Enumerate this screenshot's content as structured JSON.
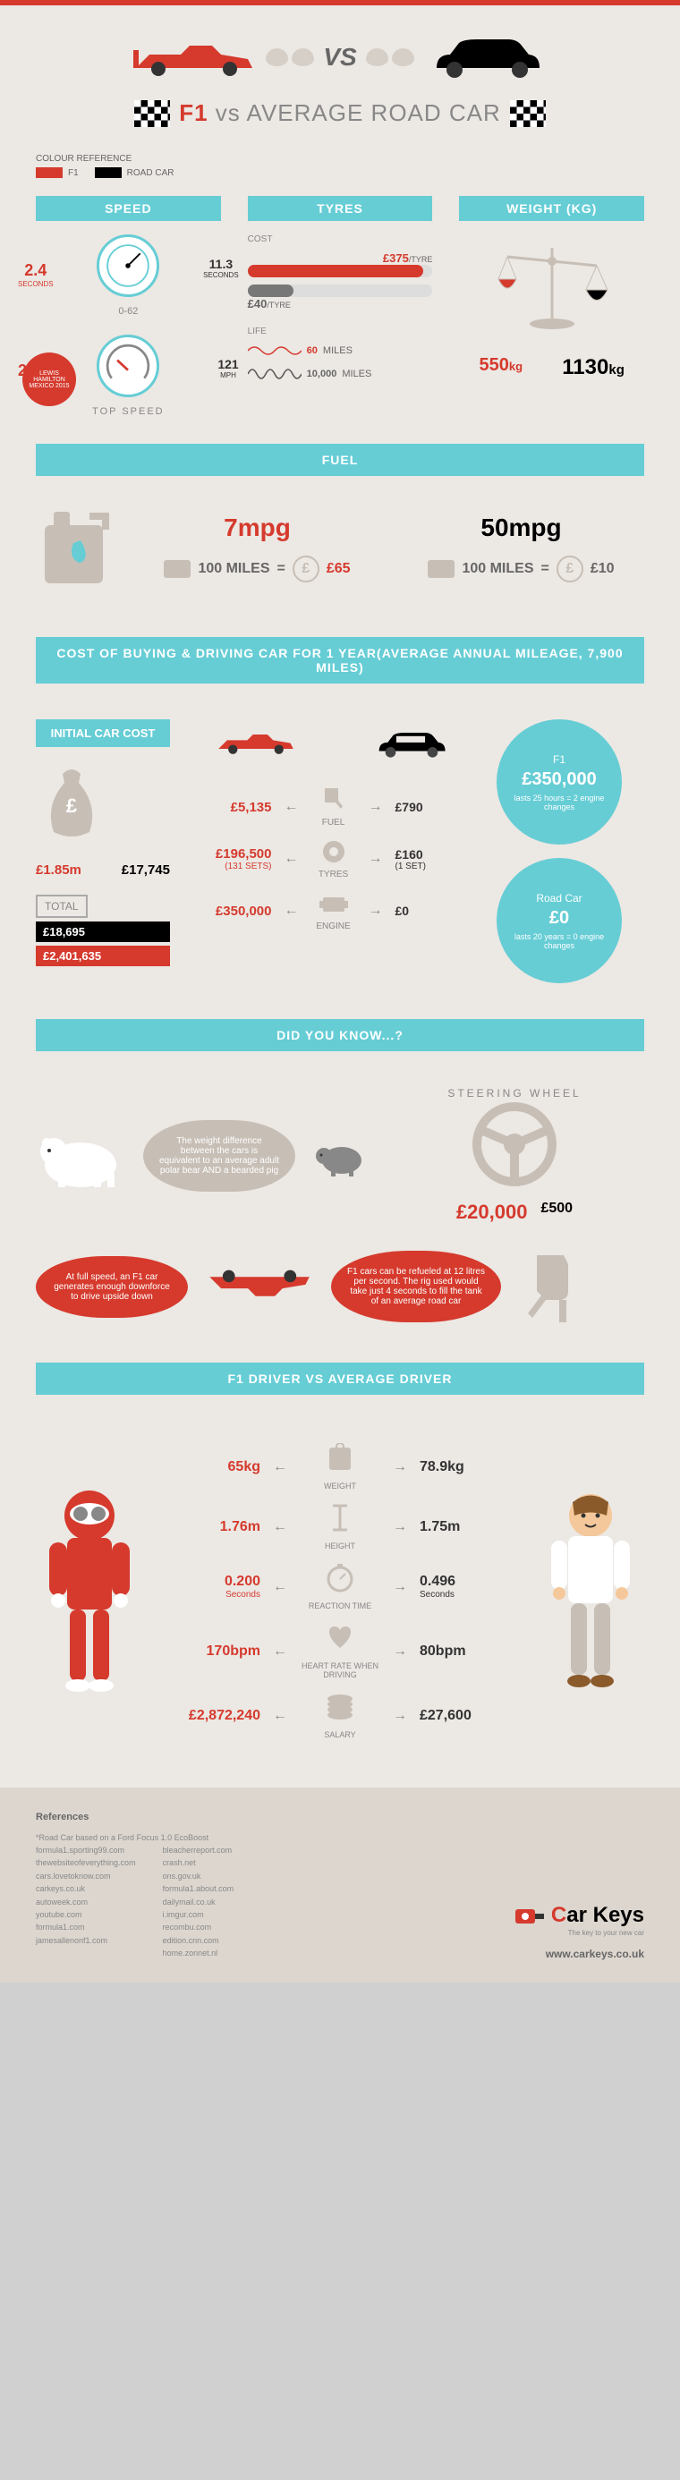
{
  "colors": {
    "f1": "#d53a2d",
    "road": "#000000",
    "teal": "#66cdd5",
    "bg": "#ece8e4",
    "beige": "#c7bfb6"
  },
  "title": {
    "f1": "F1",
    "vs": " vs ",
    "road": "AVERAGE ROAD CAR",
    "vs_badge": "VS"
  },
  "legend": {
    "header": "COLOUR REFERENCE",
    "f1": "F1",
    "road": "ROAD CAR"
  },
  "speed": {
    "header": "SPEED",
    "accel_f1": "2.4",
    "accel_f1_unit": "SECONDS",
    "accel_road": "11.3",
    "accel_road_unit": "SECONDS",
    "range": "0-62",
    "top_f1": "223",
    "top_f1_unit": "MPH",
    "top_road": "121",
    "top_road_unit": "MPH",
    "top_label": "TOP SPEED",
    "hamilton": "LEWIS HAMILTON MEXICO 2015"
  },
  "tyres": {
    "header": "TYRES",
    "cost_label": "COST",
    "cost_f1": "£375",
    "cost_f1_unit": "/TYRE",
    "cost_road": "£40",
    "cost_road_unit": "/TYRE",
    "life_label": "LIFE",
    "life_f1": "60",
    "life_f1_unit": "MILES",
    "life_road": "10,000",
    "life_road_unit": "MILES",
    "bar_f1_pct": 95,
    "bar_road_pct": 25
  },
  "weight": {
    "header": "WEIGHT (KG)",
    "f1": "550",
    "f1_unit": "kg",
    "road": "1130",
    "road_unit": "kg"
  },
  "fuel": {
    "header": "FUEL",
    "mpg_f1": "7mpg",
    "mpg_road": "50mpg",
    "dist": "100 MILES",
    "eq": "=",
    "cost_f1": "£65",
    "cost_road": "£10"
  },
  "annual": {
    "header": "COST OF BUYING & DRIVING CAR FOR 1 YEAR",
    "sub": "(AVERAGE ANNUAL MILEAGE, 7,900 MILES)",
    "initial_header": "INITIAL CAR COST",
    "initial_f1": "£1.85m",
    "initial_road": "£17,745",
    "total_label": "TOTAL",
    "total_road": "£18,695",
    "total_f1": "£2,401,635",
    "rows": [
      {
        "f1": "£5,135",
        "road": "£790",
        "label": "FUEL"
      },
      {
        "f1": "£196,500",
        "f1_sub": "(131 SETS)",
        "road": "£160",
        "road_sub": "(1 SET)",
        "label": "TYRES"
      },
      {
        "f1": "£350,000",
        "road": "£0",
        "label": "ENGINE"
      }
    ],
    "bubble_f1": {
      "title": "F1",
      "val": "£350,000",
      "sub": "lasts 25 hours = 2 engine changes"
    },
    "bubble_road": {
      "title": "Road Car",
      "val": "£0",
      "sub": "lasts 20 years = 0 engine changes"
    }
  },
  "dyk": {
    "header": "DID YOU KNOW...?",
    "weight_fact": "The weight difference between the cars is equivalent to an average adult polar bear AND a bearded pig",
    "steering_label": "STEERING WHEEL",
    "steering_f1": "£20,000",
    "steering_road": "£500",
    "downforce": "At full speed, an F1 car generates enough downforce to drive upside down",
    "refuel": "F1 cars can be refueled at 12 litres per second. The rig used would take just 4 seconds to fill the tank of an average road car"
  },
  "driver": {
    "header": "F1 DRIVER VS AVERAGE DRIVER",
    "rows": [
      {
        "f1": "65kg",
        "road": "78.9kg",
        "label": "WEIGHT"
      },
      {
        "f1": "1.76m",
        "road": "1.75m",
        "label": "HEIGHT"
      },
      {
        "f1": "0.200",
        "f1_sub": "Seconds",
        "road": "0.496",
        "road_sub": "Seconds",
        "label": "REACTION TIME"
      },
      {
        "f1": "170bpm",
        "road": "80bpm",
        "label": "HEART RATE WHEN DRIVING"
      },
      {
        "f1": "£2,872,240",
        "road": "£27,600",
        "label": "SALARY"
      }
    ]
  },
  "refs": {
    "header": "References",
    "note": "*Road Car based on a Ford Focus 1.0 EcoBoost",
    "col1": [
      "formula1.sporting99.com",
      "thewebsiteofeverything.com",
      "cars.lovetoknow.com",
      "carkeys.co.uk",
      "autoweek.com",
      "youtube.com",
      "formula1.com",
      "jamesallenonf1.com"
    ],
    "col2": [
      "bleacherreport.com",
      "crash.net",
      "ons.gov.uk",
      "formula1.about.com",
      "dailymail.co.uk",
      "i.imgur.com",
      "recombu.com",
      "edition.cnn.com",
      "home.zonnet.nl"
    ],
    "logo": "Car Keys",
    "tagline": "The key to your new car",
    "url": "www.carkeys.co.uk"
  }
}
